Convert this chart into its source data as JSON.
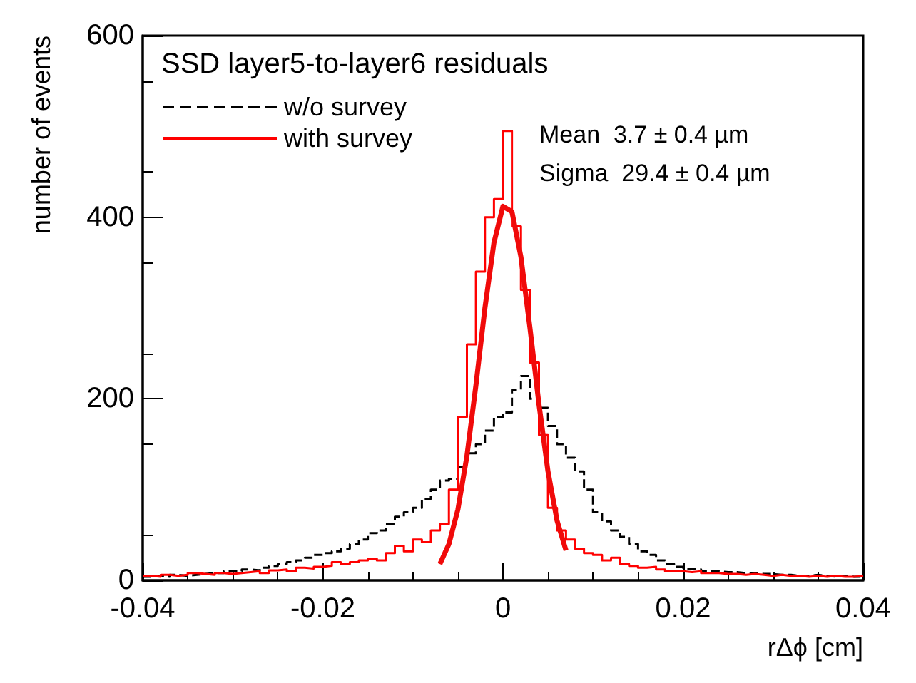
{
  "chart_data": {
    "type": "histogram",
    "title": "SSD layer5-to-layer6 residuals",
    "xlabel": "rΔϕ [cm]",
    "ylabel": "number of events",
    "bins": [
      -0.04,
      -0.039,
      -0.038,
      -0.037,
      -0.036,
      -0.035,
      -0.034,
      -0.033,
      -0.032,
      -0.031,
      -0.03,
      -0.029,
      -0.028,
      -0.027,
      -0.026,
      -0.025,
      -0.024,
      -0.023,
      -0.022,
      -0.021,
      -0.02,
      -0.019,
      -0.018,
      -0.017,
      -0.016,
      -0.015,
      -0.014,
      -0.013,
      -0.012,
      -0.011,
      -0.01,
      -0.009,
      -0.008,
      -0.007,
      -0.006,
      -0.005,
      -0.004,
      -0.003,
      -0.002,
      -0.001,
      0,
      0.001,
      0.002,
      0.003,
      0.004,
      0.005,
      0.006,
      0.007,
      0.008,
      0.009,
      0.01,
      0.011,
      0.012,
      0.013,
      0.014,
      0.015,
      0.016,
      0.017,
      0.018,
      0.019,
      0.02,
      0.021,
      0.022,
      0.023,
      0.024,
      0.025,
      0.026,
      0.027,
      0.028,
      0.029,
      0.03,
      0.031,
      0.032,
      0.033,
      0.034,
      0.035,
      0.036,
      0.037,
      0.038,
      0.039,
      0.04
    ],
    "series": [
      {
        "name": "w/o survey",
        "color": "#000000",
        "line_style": "dashed",
        "values": [
          4,
          5,
          4,
          6,
          5,
          6,
          7,
          8,
          8,
          10,
          10,
          12,
          11,
          14,
          16,
          18,
          20,
          22,
          25,
          28,
          30,
          32,
          35,
          40,
          45,
          52,
          55,
          62,
          70,
          75,
          80,
          90,
          100,
          110,
          112,
          125,
          140,
          150,
          165,
          180,
          185,
          210,
          225,
          200,
          190,
          170,
          150,
          135,
          120,
          100,
          75,
          65,
          55,
          48,
          40,
          32,
          28,
          22,
          18,
          15,
          13,
          12,
          10,
          10,
          9,
          9,
          8,
          8,
          7,
          7,
          6,
          6,
          5,
          5,
          6,
          5,
          4,
          5,
          4,
          4
        ]
      },
      {
        "name": "with survey",
        "color": "#ff0000",
        "line_style": "solid",
        "values": [
          5,
          4,
          6,
          5,
          6,
          8,
          7,
          6,
          8,
          7,
          8,
          9,
          10,
          8,
          11,
          12,
          10,
          14,
          13,
          15,
          16,
          20,
          18,
          20,
          22,
          24,
          22,
          30,
          38,
          32,
          45,
          42,
          55,
          62,
          100,
          180,
          260,
          340,
          400,
          420,
          495,
          390,
          320,
          240,
          160,
          80,
          55,
          45,
          35,
          30,
          28,
          22,
          25,
          18,
          16,
          14,
          15,
          12,
          10,
          10,
          9,
          10,
          8,
          8,
          7,
          7,
          6,
          7,
          6,
          5,
          6,
          5,
          5,
          4,
          5,
          4,
          5,
          4,
          4,
          5
        ]
      },
      {
        "type": "line",
        "color": "#f00a0a",
        "line_style": "solid",
        "x": [
          -0.007,
          -0.006,
          -0.005,
          -0.004,
          -0.003,
          -0.002,
          -0.001,
          0,
          0.001,
          0.002,
          0.003,
          0.004,
          0.005,
          0.006,
          0.007
        ],
        "values": [
          18,
          40,
          78,
          137,
          215,
          300,
          372,
          412,
          406,
          356,
          278,
          194,
          120,
          66,
          33
        ]
      }
    ],
    "annotations": [
      "Mean  3.7 ± 0.4 µm",
      "Sigma  29.4 ± 0.4 µm"
    ],
    "xlim": [
      -0.04,
      0.04
    ],
    "xticks": [
      -0.04,
      -0.02,
      0,
      0.02,
      0.04
    ],
    "ylim": [
      0,
      600
    ],
    "yticks": [
      0,
      200,
      400,
      600
    ],
    "legend": "top left",
    "grid": false
  }
}
